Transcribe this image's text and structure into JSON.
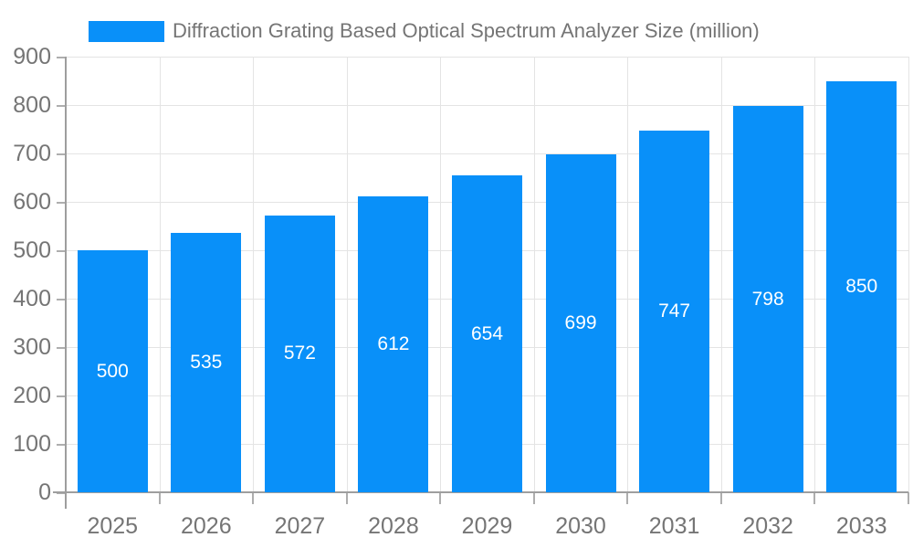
{
  "legend": {
    "label": "Diffraction Grating Based Optical Spectrum Analyzer Size (million)"
  },
  "colors": {
    "bar": "#0990f9",
    "axis_line": "#9e9e9e",
    "tick": "#aeaeae",
    "gridline": "#e4e4e4",
    "axis_text": "#757575",
    "value_label_text": "#ffffff",
    "background": "#ffffff"
  },
  "chart_data": {
    "type": "bar",
    "title": "Diffraction Grating Based Optical Spectrum Analyzer Size (million)",
    "categories": [
      "2025",
      "2026",
      "2027",
      "2028",
      "2029",
      "2030",
      "2031",
      "2032",
      "2033"
    ],
    "values": [
      500,
      535,
      572,
      612,
      654,
      699,
      747,
      798,
      850
    ],
    "xlabel": "",
    "ylabel": "",
    "ylim": [
      0,
      900
    ],
    "ytick_step": 100,
    "grid": true,
    "legend_position": "top-left",
    "value_labels": "inside-center-white"
  }
}
